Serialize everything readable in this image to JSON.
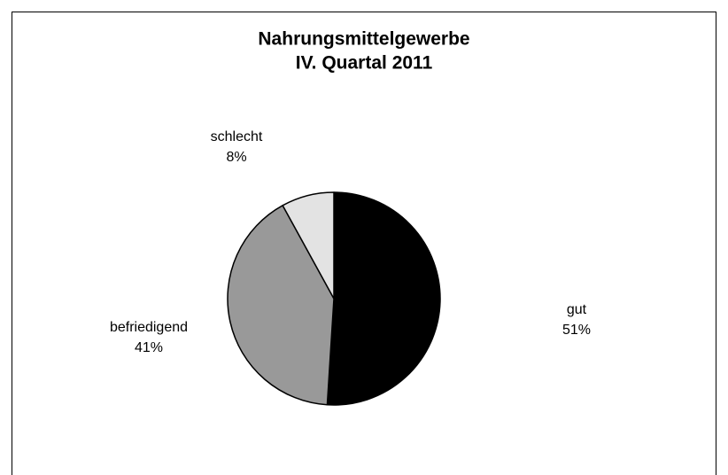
{
  "chart_data": {
    "type": "pie",
    "title": "Nahrungsmittelgewerbe",
    "subtitle": "IV. Quartal 2011",
    "categories": [
      "gut",
      "befriedigend",
      "schlecht"
    ],
    "values": [
      51,
      41,
      8
    ],
    "value_labels": [
      "51%",
      "41%",
      "8%"
    ],
    "colors": [
      "#000000",
      "#999999",
      "#e3e3e3"
    ]
  }
}
